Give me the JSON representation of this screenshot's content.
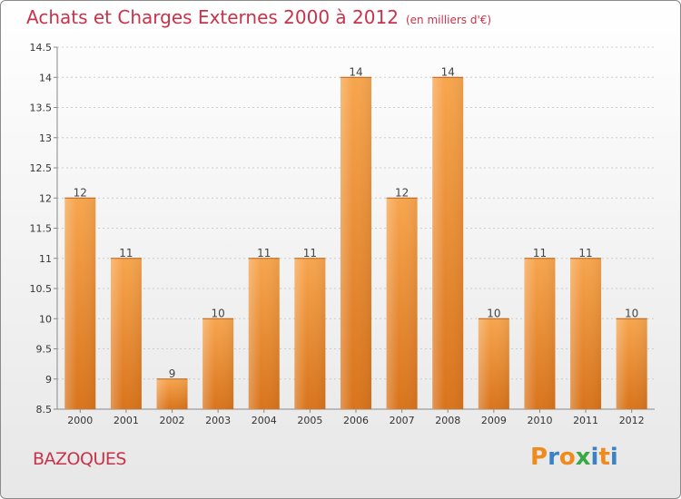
{
  "title": "Achats et Charges Externes 2000 à 2012",
  "title_unit": "(en milliers d'€)",
  "city": "BAZOQUES",
  "logo": {
    "letters": [
      "P",
      "r",
      "o",
      "x",
      "i",
      "t",
      "i"
    ],
    "colors": [
      "#f08a1c",
      "#3b82c4",
      "#f08a1c",
      "#3aa845",
      "#3b82c4",
      "#f08a1c",
      "#3b82c4"
    ]
  },
  "colors": {
    "bar_top": "#f7a54e",
    "bar_bottom": "#d9741c",
    "title": "#c8334a",
    "axis": "#888888",
    "grid": "#cccccc"
  },
  "chart_data": {
    "type": "bar",
    "title": "Achats et Charges Externes 2000 à 2012",
    "categories": [
      "2000",
      "2001",
      "2002",
      "2003",
      "2004",
      "2005",
      "2006",
      "2007",
      "2008",
      "2009",
      "2010",
      "2011",
      "2012"
    ],
    "values": [
      12,
      11,
      9,
      10,
      11,
      11,
      14,
      12,
      14,
      10,
      11,
      11,
      10
    ],
    "data_labels": [
      "12",
      "11",
      "9",
      "10",
      "11",
      "11",
      "14",
      "12",
      "14",
      "10",
      "11",
      "11",
      "10"
    ],
    "ylim": [
      8.5,
      14.5
    ],
    "yticks": [
      "8.5",
      "9",
      "9.5",
      "10",
      "10.5",
      "11",
      "11.5",
      "12",
      "12.5",
      "13",
      "13.5",
      "14",
      "14.5"
    ],
    "grid": true
  }
}
